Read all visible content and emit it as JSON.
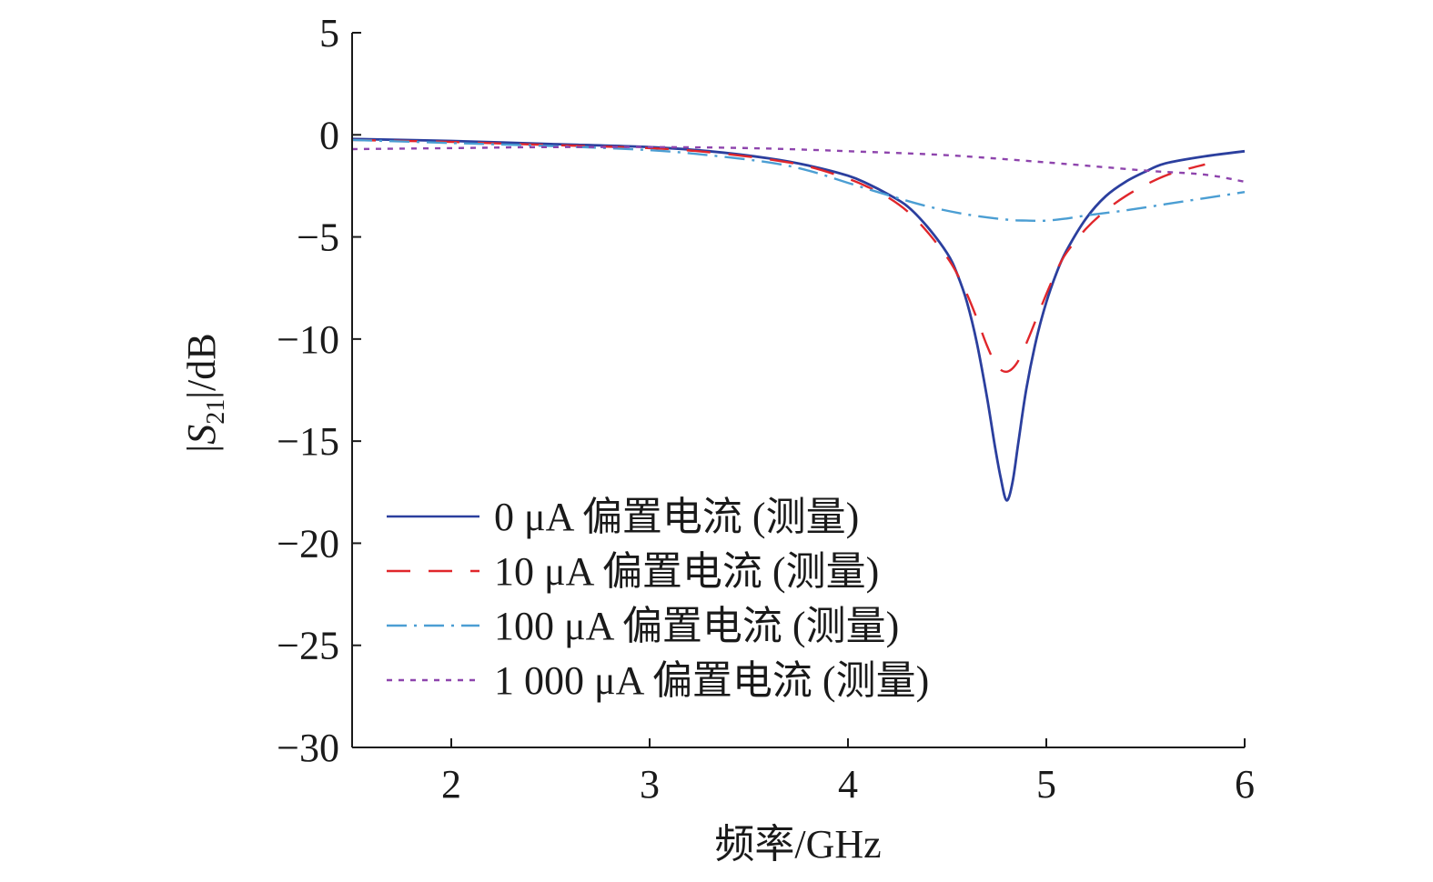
{
  "chart_data": {
    "type": "line",
    "title": "",
    "xlabel": "频率/GHz",
    "ylabel": "|S21|/dB",
    "ylabel_parts": {
      "pre": "|",
      "italic": "S",
      "sub": "21",
      "post": "|/dB"
    },
    "xlim": [
      1.5,
      6
    ],
    "ylim": [
      -30,
      5
    ],
    "xticks": [
      2,
      3,
      4,
      5,
      6
    ],
    "xtick_labels": [
      "2",
      "3",
      "4",
      "5",
      "6"
    ],
    "yticks": [
      5,
      0,
      -5,
      -10,
      -15,
      -20,
      -25,
      -30
    ],
    "ytick_labels": [
      "5",
      "0",
      "−5",
      "−10",
      "−15",
      "−20",
      "−25",
      "−30"
    ],
    "grid": false,
    "legend_position": "bottom-left",
    "series": [
      {
        "name": "0 μA 偏置电流 (测量)",
        "color": "#2b3f9e",
        "dash": "solid",
        "x": [
          1.5,
          2.0,
          2.5,
          3.0,
          3.3,
          3.6,
          3.8,
          4.0,
          4.1,
          4.2,
          4.3,
          4.4,
          4.5,
          4.55,
          4.6,
          4.65,
          4.7,
          4.74,
          4.77,
          4.8,
          4.83,
          4.86,
          4.9,
          4.95,
          5.0,
          5.05,
          5.1,
          5.2,
          5.3,
          5.4,
          5.5,
          5.6,
          5.8,
          6.0
        ],
        "y": [
          -0.2,
          -0.3,
          -0.45,
          -0.6,
          -0.8,
          -1.15,
          -1.5,
          -2.0,
          -2.4,
          -2.9,
          -3.5,
          -4.5,
          -5.8,
          -6.8,
          -8.2,
          -10.2,
          -12.8,
          -15.2,
          -16.8,
          -17.9,
          -17.0,
          -15.0,
          -12.4,
          -10.0,
          -8.2,
          -6.8,
          -5.7,
          -4.1,
          -3.0,
          -2.3,
          -1.8,
          -1.4,
          -1.05,
          -0.8
        ]
      },
      {
        "name": "10 μA 偏置电流 (测量)",
        "color": "#e0262b",
        "dash": "long",
        "x": [
          1.5,
          2.0,
          2.5,
          3.0,
          3.3,
          3.6,
          3.8,
          4.0,
          4.1,
          4.2,
          4.3,
          4.4,
          4.5,
          4.55,
          4.6,
          4.65,
          4.7,
          4.75,
          4.8,
          4.85,
          4.9,
          4.95,
          5.0,
          5.05,
          5.1,
          5.2,
          5.3,
          5.4,
          5.5,
          5.6,
          5.7,
          5.8
        ],
        "y": [
          -0.25,
          -0.35,
          -0.5,
          -0.65,
          -0.85,
          -1.2,
          -1.55,
          -2.15,
          -2.55,
          -3.05,
          -3.75,
          -4.75,
          -6.0,
          -6.8,
          -7.8,
          -9.0,
          -10.3,
          -11.3,
          -11.6,
          -11.2,
          -10.2,
          -9.0,
          -7.8,
          -6.7,
          -5.8,
          -4.6,
          -3.7,
          -3.0,
          -2.45,
          -2.0,
          -1.7,
          -1.45
        ]
      },
      {
        "name": "100 μA 偏置电流 (测量)",
        "color": "#4b9ed3",
        "dash": "dashdot",
        "x": [
          1.5,
          2.0,
          2.5,
          3.0,
          3.3,
          3.6,
          3.8,
          4.0,
          4.2,
          4.4,
          4.6,
          4.8,
          4.9,
          5.0,
          5.1,
          5.2,
          5.4,
          5.6,
          5.8,
          6.0
        ],
        "y": [
          -0.25,
          -0.4,
          -0.55,
          -0.75,
          -1.0,
          -1.35,
          -1.75,
          -2.35,
          -2.95,
          -3.5,
          -3.9,
          -4.15,
          -4.2,
          -4.2,
          -4.1,
          -3.95,
          -3.7,
          -3.4,
          -3.1,
          -2.8
        ]
      },
      {
        "name": "1 000 μA 偏置电流 (测量)",
        "color": "#8e44ad",
        "dash": "dotted",
        "x": [
          1.5,
          2.0,
          2.5,
          3.0,
          3.5,
          4.0,
          4.5,
          5.0,
          5.5,
          5.8,
          6.0
        ],
        "y": [
          -0.7,
          -0.65,
          -0.6,
          -0.6,
          -0.65,
          -0.8,
          -1.0,
          -1.35,
          -1.75,
          -1.95,
          -2.3
        ]
      }
    ]
  }
}
